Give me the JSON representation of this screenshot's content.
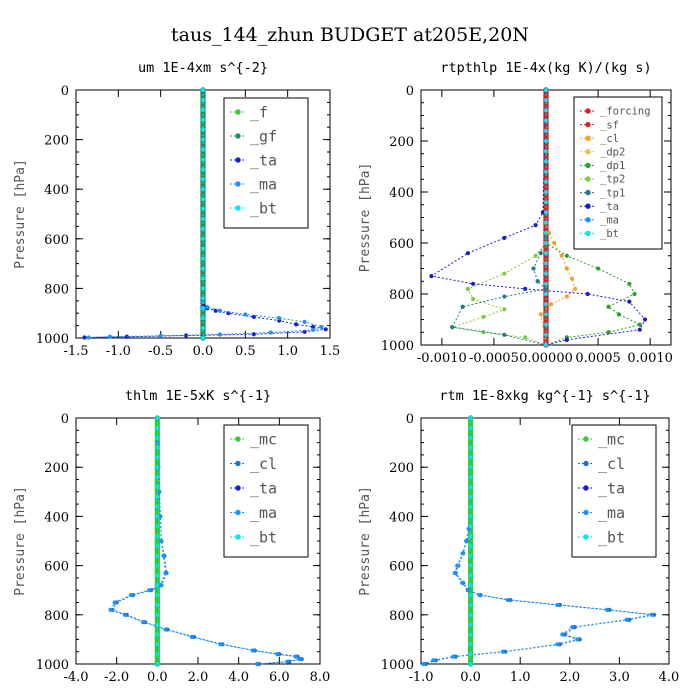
{
  "figure_title": "taus_144_zhun  BUDGET at205E,20N",
  "colors": {
    "f": "#32cd32",
    "gf": "#2e8b57",
    "ta": "#1c1ccf",
    "ma": "#1e90ff",
    "bt": "#00e5ee",
    "mc": "#32cd32",
    "cl": "#1874cd",
    "forcing": "#e31a1c",
    "sf": "#cd2626",
    "dp2": "#f5c542",
    "dp1": "#2ca02c",
    "tp2": "#7ccd3a",
    "tp1": "#1f7a8c",
    "cl_rt": "#f0a030"
  },
  "chart_data": [
    {
      "type": "line",
      "title": "um  1E-4xm s^{-2}",
      "ylabel": "Pressure [hPa]",
      "xlim": [
        -1.5,
        1.5
      ],
      "ylim": [
        1000,
        0
      ],
      "xticks": [
        -1.5,
        -1.0,
        -0.5,
        0.0,
        0.5,
        1.0,
        1.5
      ],
      "xtick_labels": [
        "-1.5",
        "-1.0",
        "-0.5",
        "0.0",
        "0.5",
        "1.0",
        "1.5"
      ],
      "yticks": [
        0,
        200,
        400,
        600,
        800,
        1000
      ],
      "legend": [
        "_f",
        "_gf",
        "_ta",
        "_ma",
        "_bt"
      ],
      "series": [
        {
          "name": "_f",
          "color_key": "f",
          "x": [
            0,
            0
          ],
          "y": [
            0,
            1000
          ],
          "marker": "dense"
        },
        {
          "name": "_gf",
          "color_key": "gf",
          "x": [
            0,
            0
          ],
          "y": [
            0,
            1000
          ],
          "marker": "dense"
        },
        {
          "name": "_ta",
          "color_key": "ta",
          "x": [
            0,
            0,
            0.01,
            0.05,
            0.15,
            0.3,
            0.6,
            0.9,
            1.1,
            1.3,
            1.45,
            1.2,
            0.6,
            -0.2,
            -0.9,
            -1.4
          ],
          "y": [
            0,
            850,
            870,
            880,
            890,
            900,
            915,
            930,
            945,
            955,
            965,
            975,
            985,
            990,
            995,
            998
          ]
        },
        {
          "name": "_ma",
          "color_key": "ma",
          "x": [
            0,
            0,
            0.05,
            0.2,
            0.5,
            0.9,
            1.2,
            1.4,
            1.3,
            0.8,
            0.2,
            -0.5,
            -1.1,
            -1.35
          ],
          "y": [
            0,
            855,
            875,
            890,
            905,
            920,
            935,
            955,
            967,
            978,
            986,
            991,
            995,
            998
          ]
        },
        {
          "name": "_bt",
          "color_key": "bt",
          "x": [
            0,
            0
          ],
          "y": [
            0,
            1000
          ],
          "marker": "sparse"
        }
      ]
    },
    {
      "type": "line",
      "title": "rtpthlp  1E-4x(kg K)/(kg s)",
      "ylabel": "Pressure [hPa]",
      "xlim": [
        -0.0012,
        0.0012
      ],
      "ylim": [
        1000,
        0
      ],
      "xticks": [
        -0.001,
        -0.0005,
        0.0,
        0.0005,
        0.001
      ],
      "xtick_labels": [
        "-0.0010",
        "-0.0005",
        "0.00000",
        "0.0005",
        "0.0010"
      ],
      "yticks": [
        0,
        200,
        400,
        600,
        800,
        1000
      ],
      "legend": [
        "_forcing",
        "_sf",
        "_cl",
        "_dp2",
        "_dp1",
        "_tp2",
        "_tp1",
        "_ta",
        "_ma",
        "_bt"
      ],
      "series": [
        {
          "name": "_forcing",
          "color_key": "forcing",
          "x": [
            0,
            0
          ],
          "y": [
            0,
            1000
          ],
          "marker": "dense"
        },
        {
          "name": "_sf",
          "color_key": "sf",
          "x": [
            0,
            0
          ],
          "y": [
            0,
            1000
          ],
          "marker": "dense"
        },
        {
          "name": "_cl",
          "color_key": "cl_rt",
          "x": [
            0,
            0,
            3e-05,
            8e-05,
            0.00015,
            0.0002,
            0.00025,
            0.00028,
            0.0002,
            5e-05,
            -5e-05,
            0
          ],
          "y": [
            0,
            520,
            560,
            600,
            650,
            700,
            740,
            780,
            810,
            840,
            880,
            1000
          ]
        },
        {
          "name": "_dp2",
          "color_key": "dp2",
          "x": [
            0,
            0
          ],
          "y": [
            0,
            1000
          ]
        },
        {
          "name": "_dp1",
          "color_key": "dp1",
          "x": [
            0,
            0,
            0.0002,
            0.0005,
            0.0008,
            0.00085,
            0.0006,
            0.0007,
            0.0009,
            0.0006,
            0.0002,
            0
          ],
          "y": [
            0,
            600,
            650,
            700,
            760,
            800,
            850,
            880,
            920,
            950,
            970,
            1000
          ]
        },
        {
          "name": "_tp2",
          "color_key": "tp2",
          "x": [
            0,
            0,
            -0.0001,
            -0.0004,
            -0.00075,
            -0.0007,
            -0.0004,
            -0.0006,
            -0.0009,
            -0.0006,
            -0.0002,
            0
          ],
          "y": [
            0,
            600,
            650,
            720,
            780,
            820,
            860,
            890,
            930,
            950,
            970,
            1000
          ]
        },
        {
          "name": "_tp1",
          "color_key": "tp1",
          "x": [
            0,
            0,
            -5e-05,
            -0.00012,
            -8e-05,
            0,
            -0.0004,
            -0.0008,
            -0.0009,
            -0.0004,
            0
          ],
          "y": [
            0,
            580,
            640,
            700,
            750,
            780,
            810,
            850,
            930,
            960,
            1000
          ]
        },
        {
          "name": "_ta",
          "color_key": "ta",
          "x": [
            0,
            -3e-05,
            -0.0001,
            -0.0004,
            -0.00075,
            -0.0011,
            -0.0007,
            -0.0002,
            0.0004,
            0.0008,
            0.00095,
            0.0009,
            0.0002,
            0
          ],
          "y": [
            0,
            480,
            530,
            580,
            640,
            730,
            760,
            780,
            800,
            830,
            900,
            940,
            980,
            1000
          ]
        },
        {
          "name": "_ma",
          "color_key": "ma",
          "x": [
            0,
            0
          ],
          "y": [
            0,
            1000
          ]
        },
        {
          "name": "_bt",
          "color_key": "bt",
          "x": [
            0,
            0
          ],
          "y": [
            0,
            1000
          ],
          "marker": "sparse"
        }
      ]
    },
    {
      "type": "line",
      "title": "thlm  1E-5xK s^{-1}",
      "ylabel": "Pressure [hPa]",
      "xlim": [
        -4.0,
        8.0
      ],
      "ylim": [
        1000,
        0
      ],
      "xticks": [
        -4.0,
        -2.0,
        0.0,
        2.0,
        4.0,
        6.0,
        8.0
      ],
      "xtick_labels": [
        "-4.0",
        "-2.0",
        "0.0",
        "2.0",
        "4.0",
        "6.0",
        "8.0"
      ],
      "yticks": [
        0,
        200,
        400,
        600,
        800,
        1000
      ],
      "legend": [
        "_mc",
        "_cl",
        "_ta",
        "_ma",
        "_bt"
      ],
      "series": [
        {
          "name": "_mc",
          "color_key": "mc",
          "x": [
            0,
            0
          ],
          "y": [
            0,
            1000
          ],
          "marker": "dense"
        },
        {
          "name": "_cl",
          "color_key": "cl",
          "x": [
            0,
            0.02,
            0.05,
            0.1,
            0.15,
            0.2,
            0.35,
            0.45,
            0.2,
            -0.3,
            -1.2,
            -2.0,
            -2.2,
            -1.5,
            -0.6,
            0.5,
            1.8,
            3.2,
            4.8,
            6.0,
            6.9,
            7.1,
            6.5,
            5.0
          ],
          "y": [
            0,
            100,
            200,
            300,
            400,
            500,
            560,
            630,
            680,
            700,
            720,
            750,
            780,
            800,
            830,
            860,
            890,
            920,
            945,
            960,
            970,
            980,
            990,
            1000
          ]
        },
        {
          "name": "_ta",
          "color_key": "ta",
          "x": [
            0,
            0
          ],
          "y": [
            0,
            1000
          ]
        },
        {
          "name": "_ma",
          "color_key": "ma",
          "x": [
            0,
            0.02,
            0.05,
            0.1,
            0.15,
            0.2,
            0.3,
            0.4,
            0.15,
            -0.4,
            -1.3,
            -2.1,
            -2.3,
            -1.6,
            -0.7,
            0.4,
            1.7,
            3.1,
            4.7,
            5.9,
            6.8,
            7.0,
            6.4,
            4.9
          ],
          "y": [
            0,
            100,
            200,
            300,
            400,
            500,
            560,
            630,
            680,
            700,
            720,
            750,
            780,
            800,
            830,
            860,
            890,
            920,
            945,
            960,
            970,
            980,
            990,
            1000
          ]
        },
        {
          "name": "_bt",
          "color_key": "bt",
          "x": [
            0,
            0
          ],
          "y": [
            0,
            1000
          ],
          "marker": "sparse"
        }
      ]
    },
    {
      "type": "line",
      "title": "rtm  1E-8xkg kg^{-1} s^{-1}",
      "ylabel": "Pressure [hPa]",
      "xlim": [
        -1.0,
        4.0
      ],
      "ylim": [
        1000,
        0
      ],
      "xticks": [
        -1.0,
        0.0,
        1.0,
        2.0,
        3.0,
        4.0
      ],
      "xtick_labels": [
        "-1.0",
        "0.0",
        "1.0",
        "2.0",
        "3.0",
        "4.0"
      ],
      "yticks": [
        0,
        200,
        400,
        600,
        800,
        1000
      ],
      "legend": [
        "_mc",
        "_cl",
        "_ta",
        "_ma",
        "_bt"
      ],
      "series": [
        {
          "name": "_mc",
          "color_key": "mc",
          "x": [
            0,
            0
          ],
          "y": [
            0,
            1000
          ],
          "marker": "dense"
        },
        {
          "name": "_cl",
          "color_key": "cl",
          "x": [
            0,
            0,
            -0.03,
            -0.08,
            -0.15,
            -0.25,
            -0.3,
            -0.15,
            -0.05,
            0.2,
            0.8,
            1.8,
            2.8,
            3.7,
            3.2,
            2.1,
            1.9,
            2.2,
            1.8,
            0.7,
            -0.3,
            -0.7,
            -0.9
          ],
          "y": [
            0,
            400,
            450,
            500,
            550,
            600,
            630,
            670,
            700,
            720,
            740,
            760,
            780,
            800,
            820,
            850,
            880,
            900,
            920,
            950,
            970,
            985,
            1000
          ]
        },
        {
          "name": "_ta",
          "color_key": "ta",
          "x": [
            0,
            0
          ],
          "y": [
            0,
            1000
          ]
        },
        {
          "name": "_ma",
          "color_key": "ma",
          "x": [
            0,
            0,
            -0.04,
            -0.09,
            -0.16,
            -0.27,
            -0.32,
            -0.17,
            -0.06,
            0.18,
            0.75,
            1.75,
            2.75,
            3.65,
            3.15,
            2.05,
            1.85,
            2.15,
            1.75,
            0.65,
            -0.35,
            -0.75,
            -0.95
          ],
          "y": [
            0,
            400,
            450,
            500,
            550,
            600,
            630,
            670,
            700,
            720,
            740,
            760,
            780,
            800,
            820,
            850,
            880,
            900,
            920,
            950,
            970,
            985,
            1000
          ]
        },
        {
          "name": "_bt",
          "color_key": "bt",
          "x": [
            0,
            0
          ],
          "y": [
            0,
            1000
          ],
          "marker": "sparse"
        }
      ]
    }
  ]
}
